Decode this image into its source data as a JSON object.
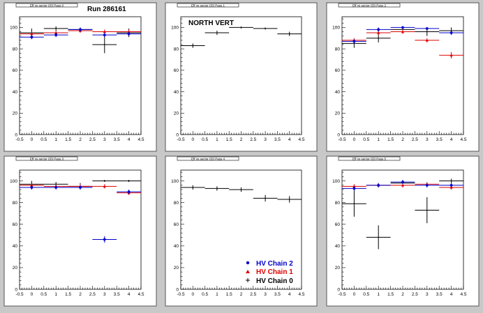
{
  "figure": {
    "run_label": "Run 286161",
    "panel_label": "NORTH VERT",
    "legend": [
      {
        "label": "HV Chain 2",
        "color": "#0000cc",
        "marker": "circle"
      },
      {
        "label": "HV Chain 1",
        "color": "#dd0000",
        "marker": "triangle"
      },
      {
        "label": "HV Chain 0",
        "color": "#000000",
        "marker": "plus"
      }
    ]
  },
  "chart_data": [
    {
      "type": "scatter",
      "panel": 0,
      "title": "Eff vs sector ((0) Pass 0",
      "xlim": [
        -0.5,
        4.5
      ],
      "ylim": [
        0,
        110
      ],
      "xticks": [
        "-0.5",
        "0",
        "0.5",
        "1",
        "1.5",
        "2",
        "2.5",
        "3",
        "3.5",
        "4",
        "4.5"
      ],
      "yticks": [
        "0",
        "20",
        "40",
        "60",
        "80",
        "100"
      ],
      "series": [
        {
          "color": "#0000cc",
          "x": [
            0,
            1,
            2,
            3,
            4
          ],
          "y": [
            91,
            93,
            98,
            93,
            94
          ],
          "yerr": [
            2,
            2,
            2,
            2,
            2
          ]
        },
        {
          "color": "#dd0000",
          "x": [
            0,
            1,
            2,
            3,
            4
          ],
          "y": [
            94,
            95,
            97,
            96,
            96
          ],
          "yerr": [
            2,
            2,
            2,
            2,
            2
          ]
        },
        {
          "color": "#000000",
          "x": [
            0,
            1,
            2,
            3,
            4
          ],
          "y": [
            95,
            99,
            98,
            84,
            95
          ],
          "yerr": [
            4,
            2,
            2,
            8,
            4
          ]
        }
      ]
    },
    {
      "type": "scatter",
      "panel": 1,
      "title": "Eff vs sector ((0) Pass 1",
      "xlim": [
        -0.5,
        4.5
      ],
      "ylim": [
        0,
        110
      ],
      "xticks": [
        "-0.5",
        "0",
        "0.5",
        "1",
        "1.5",
        "2",
        "2.5",
        "3",
        "3.5",
        "4",
        "4.5"
      ],
      "yticks": [
        "0",
        "20",
        "40",
        "60",
        "80",
        "100"
      ],
      "series": [
        {
          "color": "#000000",
          "x": [
            0,
            1,
            2,
            3,
            4
          ],
          "y": [
            83,
            95,
            100,
            99,
            94
          ],
          "yerr": [
            2,
            2,
            1,
            1,
            2
          ]
        }
      ]
    },
    {
      "type": "scatter",
      "panel": 2,
      "title": "Eff vs sector ((0) Pass 2",
      "xlim": [
        -0.5,
        4.5
      ],
      "ylim": [
        0,
        110
      ],
      "xticks": [
        "-0.5",
        "0",
        "0.5",
        "1",
        "1.5",
        "2",
        "2.5",
        "3",
        "3.5",
        "4",
        "4.5"
      ],
      "yticks": [
        "0",
        "20",
        "40",
        "60",
        "80",
        "100"
      ],
      "series": [
        {
          "color": "#0000cc",
          "x": [
            0,
            1,
            2,
            3,
            4
          ],
          "y": [
            87,
            98,
            100,
            99,
            95
          ],
          "yerr": [
            2,
            2,
            1,
            1,
            2
          ]
        },
        {
          "color": "#dd0000",
          "x": [
            0,
            1,
            2,
            3,
            4
          ],
          "y": [
            88,
            95,
            96,
            88,
            74
          ],
          "yerr": [
            2,
            2,
            2,
            2,
            3
          ]
        },
        {
          "color": "#000000",
          "x": [
            0,
            1,
            2,
            3,
            4
          ],
          "y": [
            85,
            90,
            98,
            96,
            97
          ],
          "yerr": [
            4,
            4,
            2,
            4,
            3
          ]
        }
      ]
    },
    {
      "type": "scatter",
      "panel": 3,
      "title": "Eff vs sector ((0) Pass 3",
      "xlim": [
        -0.5,
        4.5
      ],
      "ylim": [
        0,
        110
      ],
      "xticks": [
        "-0.5",
        "0",
        "0.5",
        "1",
        "1.5",
        "2",
        "2.5",
        "3",
        "3.5",
        "4",
        "4.5"
      ],
      "yticks": [
        "0",
        "20",
        "40",
        "60",
        "80",
        "100"
      ],
      "series": [
        {
          "color": "#0000cc",
          "x": [
            0,
            1,
            2,
            3,
            4
          ],
          "y": [
            94,
            94,
            94,
            46,
            90
          ],
          "yerr": [
            2,
            2,
            2,
            3,
            2
          ]
        },
        {
          "color": "#dd0000",
          "x": [
            0,
            1,
            2,
            3,
            4
          ],
          "y": [
            96,
            95,
            95,
            95,
            89
          ],
          "yerr": [
            2,
            2,
            2,
            2,
            2
          ]
        },
        {
          "color": "#000000",
          "x": [
            0,
            1,
            2,
            3,
            4
          ],
          "y": [
            97,
            97,
            95,
            100,
            100
          ],
          "yerr": [
            3,
            2,
            3,
            1,
            1
          ]
        }
      ]
    },
    {
      "type": "scatter",
      "panel": 4,
      "title": "Eff vs sector ((0) Pass 4",
      "xlim": [
        -0.5,
        4.5
      ],
      "ylim": [
        0,
        110
      ],
      "xticks": [
        "-0.5",
        "0",
        "0.5",
        "1",
        "1.5",
        "2",
        "2.5",
        "3",
        "3.5",
        "4",
        "4.5"
      ],
      "yticks": [
        "0",
        "20",
        "40",
        "60",
        "80",
        "100"
      ],
      "series": [
        {
          "color": "#000000",
          "x": [
            0,
            1,
            2,
            3,
            4
          ],
          "y": [
            94,
            93,
            92,
            84,
            83
          ],
          "yerr": [
            2,
            2,
            2,
            3,
            3
          ]
        }
      ]
    },
    {
      "type": "scatter",
      "panel": 5,
      "title": "Eff vs sector ((0) Pass 5",
      "xlim": [
        -0.5,
        4.5
      ],
      "ylim": [
        0,
        110
      ],
      "xticks": [
        "-0.5",
        "0",
        "0.5",
        "1",
        "1.5",
        "2",
        "2.5",
        "3",
        "3.5",
        "4",
        "4.5"
      ],
      "yticks": [
        "0",
        "20",
        "40",
        "60",
        "80",
        "100"
      ],
      "series": [
        {
          "color": "#0000cc",
          "x": [
            0,
            1,
            2,
            3,
            4
          ],
          "y": [
            93,
            96,
            99,
            96,
            96
          ],
          "yerr": [
            2,
            2,
            2,
            2,
            2
          ]
        },
        {
          "color": "#dd0000",
          "x": [
            0,
            1,
            2,
            3,
            4
          ],
          "y": [
            95,
            96,
            96,
            97,
            94
          ],
          "yerr": [
            2,
            2,
            2,
            2,
            2
          ]
        },
        {
          "color": "#000000",
          "x": [
            0,
            1,
            2,
            3,
            4
          ],
          "y": [
            79,
            48,
            98,
            73,
            100
          ],
          "yerr": [
            12,
            11,
            3,
            12,
            2
          ]
        }
      ]
    }
  ]
}
